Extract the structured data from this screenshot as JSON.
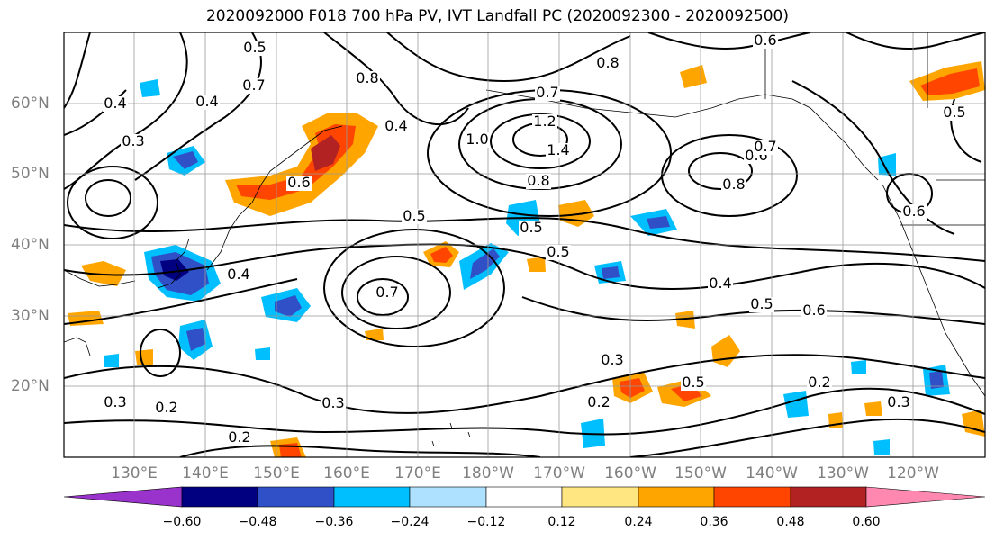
{
  "title": "2020092000 F018 700 hPa PV, IVT Landfall PC (2020092300 - 2020092500)",
  "lat_ticks": [
    "60°N",
    "50°N",
    "40°N",
    "30°N",
    "20°N"
  ],
  "lon_ticks": [
    "130°E",
    "140°E",
    "150°E",
    "160°E",
    "170°E",
    "180°W",
    "170°W",
    "160°W",
    "150°W",
    "140°W",
    "130°W",
    "120°W"
  ],
  "colorbar": {
    "colors": [
      "#9933cc",
      "#000080",
      "#3050c8",
      "#00bfff",
      "#aee0ff",
      "#ffffff",
      "#ffe680",
      "#ffa500",
      "#ff4500",
      "#b22222",
      "#ff88b0"
    ],
    "labels": [
      "−0.60",
      "−0.48",
      "−0.36",
      "−0.24",
      "−0.12",
      "0.12",
      "0.24",
      "0.36",
      "0.48",
      "0.60"
    ]
  },
  "contour_labels": [
    "0.5",
    "0.4",
    "0.3",
    "0.7",
    "0.8",
    "0.7",
    "0.8",
    "0.6",
    "0.4",
    "1.0",
    "1.2",
    "1.4",
    "0.8",
    "0.6",
    "0.7",
    "0.5",
    "0.5",
    "0.5",
    "0.6",
    "0.5",
    "0.4",
    "0.4",
    "0.6",
    "0.5",
    "0.3",
    "0.2",
    "0.3",
    "0.2",
    "0.2",
    "0.3",
    "0.5",
    "0.2",
    "0.3",
    "0.6",
    "0.4",
    "0.8",
    "0.7"
  ]
}
